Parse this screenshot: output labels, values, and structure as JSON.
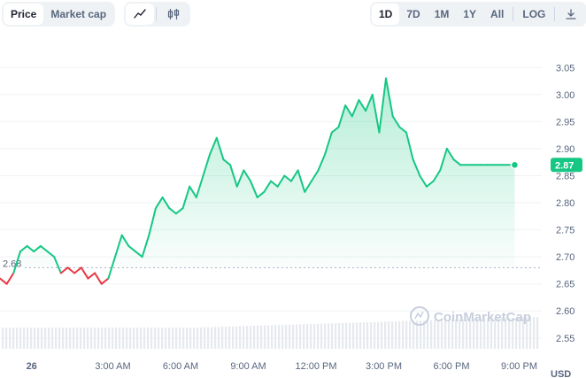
{
  "toolbar": {
    "mode_tabs": [
      {
        "label": "Price",
        "active": true
      },
      {
        "label": "Market cap",
        "active": false
      }
    ],
    "chart_type_icons": [
      {
        "name": "line-chart-icon",
        "active": true
      },
      {
        "name": "candlestick-icon",
        "active": false
      }
    ],
    "ranges": [
      {
        "label": "1D",
        "active": true
      },
      {
        "label": "7D",
        "active": false
      },
      {
        "label": "1M",
        "active": false
      },
      {
        "label": "1Y",
        "active": false
      },
      {
        "label": "All",
        "active": false
      }
    ],
    "log_label": "LOG",
    "download_icon": "download-icon"
  },
  "watermark": "CoinMarketCap",
  "colors": {
    "up": "#16c784",
    "down": "#ea3943",
    "accent": "#3861fb",
    "grid": "#eff2f5",
    "reference": "#a6b0c3"
  },
  "chart_data": {
    "type": "line",
    "reference_label": "2.68",
    "reference_value": 2.68,
    "current_label": "2.87",
    "current_value": 2.87,
    "y_ticks": [
      "3.05",
      "3.00",
      "2.95",
      "2.90",
      "2.85",
      "2.80",
      "2.75",
      "2.70",
      "2.65",
      "2.60",
      "2.55"
    ],
    "ylim": [
      2.53,
      3.08
    ],
    "x_ticks": [
      "26",
      "3:00 AM",
      "6:00 AM",
      "9:00 AM",
      "12:00 PM",
      "3:00 PM",
      "6:00 PM",
      "9:00 PM"
    ],
    "y_unit": "USD",
    "x": [
      0,
      0.3,
      0.6,
      0.9,
      1.2,
      1.5,
      1.8,
      2.1,
      2.4,
      2.7,
      3.0,
      3.3,
      3.6,
      3.9,
      4.2,
      4.5,
      4.8,
      5.1,
      5.4,
      5.7,
      6.0,
      6.3,
      6.6,
      6.9,
      7.2,
      7.5,
      7.8,
      8.1,
      8.4,
      8.7,
      9.0,
      9.3,
      9.6,
      9.9,
      10.2,
      10.5,
      10.8,
      11.1,
      11.4,
      11.7,
      12.0,
      12.3,
      12.6,
      12.9,
      13.2,
      13.5,
      13.8,
      14.1,
      14.4,
      14.7,
      15.0,
      15.3,
      15.6,
      15.9,
      16.2,
      16.5,
      16.8,
      17.1,
      17.4,
      17.7,
      18.0,
      18.3,
      18.6,
      18.9,
      19.2,
      19.5,
      19.8,
      20.1,
      20.4,
      20.7,
      21.0,
      21.3,
      21.6,
      21.9,
      22.2,
      22.5,
      22.8
    ],
    "values": [
      2.66,
      2.65,
      2.67,
      2.71,
      2.72,
      2.71,
      2.72,
      2.71,
      2.7,
      2.67,
      2.68,
      2.67,
      2.68,
      2.66,
      2.67,
      2.65,
      2.66,
      2.7,
      2.74,
      2.72,
      2.71,
      2.7,
      2.74,
      2.79,
      2.81,
      2.79,
      2.78,
      2.79,
      2.83,
      2.81,
      2.85,
      2.89,
      2.92,
      2.88,
      2.87,
      2.83,
      2.86,
      2.84,
      2.81,
      2.82,
      2.84,
      2.83,
      2.85,
      2.84,
      2.86,
      2.82,
      2.84,
      2.86,
      2.89,
      2.93,
      2.94,
      2.98,
      2.96,
      2.99,
      2.97,
      3.0,
      2.93,
      3.03,
      2.96,
      2.94,
      2.93,
      2.88,
      2.85,
      2.83,
      2.84,
      2.86,
      2.9,
      2.88,
      2.87,
      2.87,
      2.87,
      2.87,
      2.87,
      2.87,
      2.87,
      2.87,
      2.87
    ],
    "volume_visible": true
  }
}
